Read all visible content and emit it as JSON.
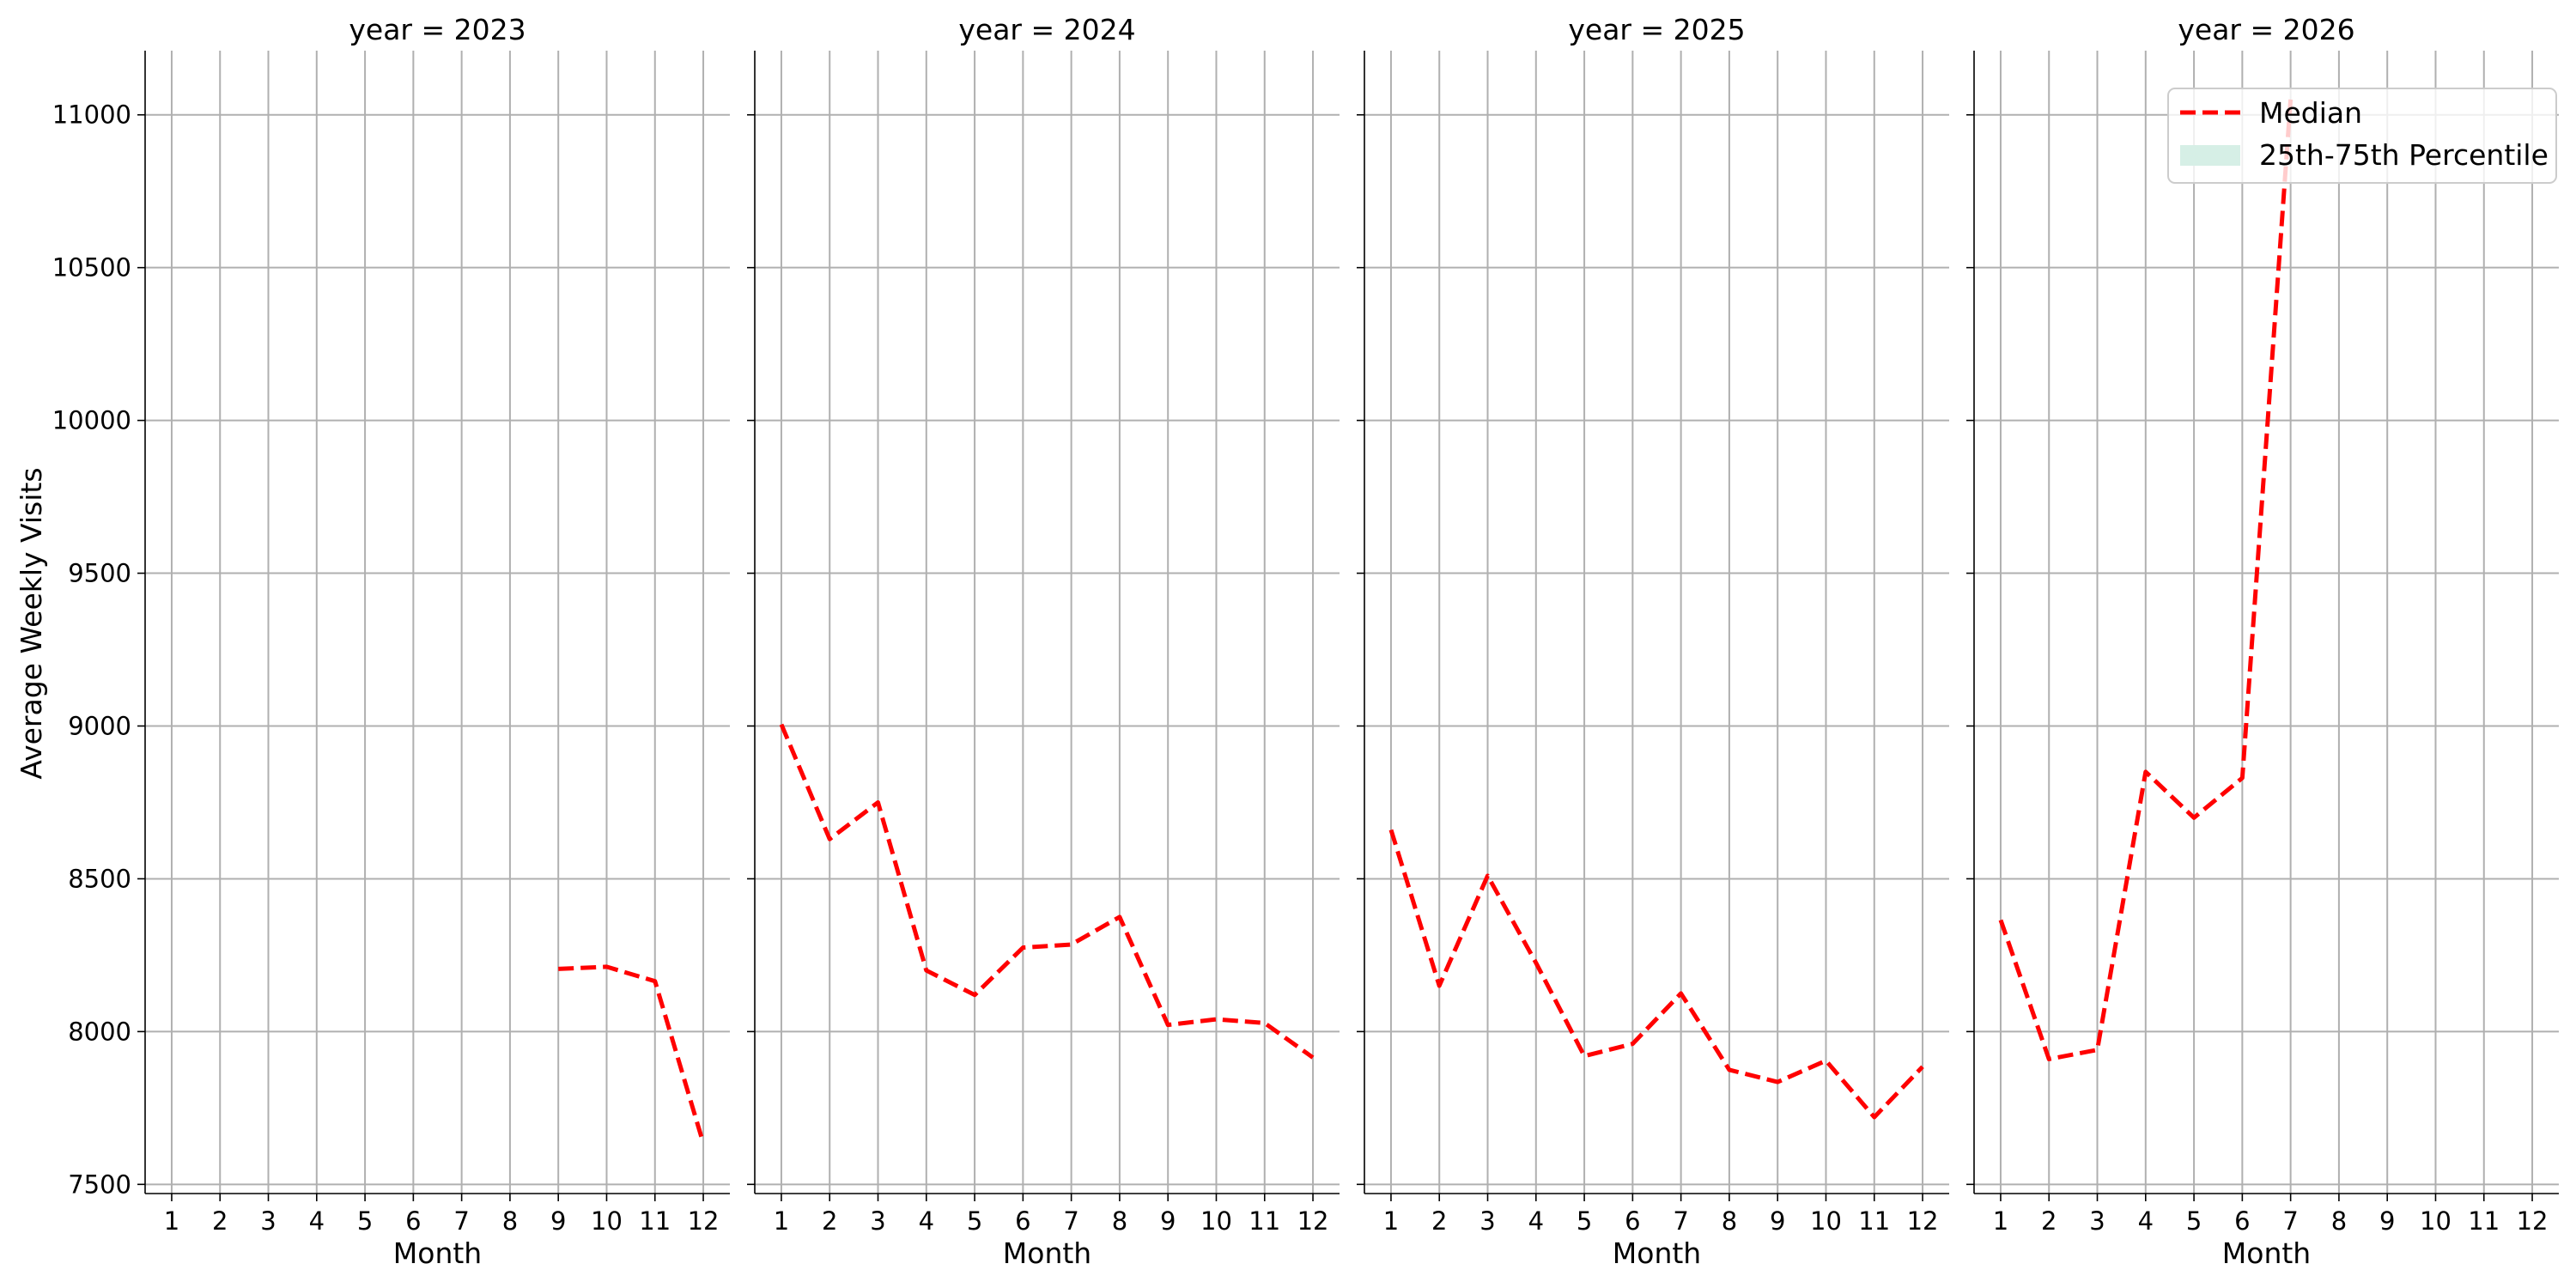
{
  "chart_data": {
    "type": "line",
    "ylabel": "Average Weekly Visits",
    "xlabel": "Month",
    "ylim": [
      7470,
      11210
    ],
    "yticks": [
      7500,
      8000,
      8500,
      9000,
      9500,
      10000,
      10500,
      11000
    ],
    "xlim": [
      0.45,
      12.55
    ],
    "xticks": [
      1,
      2,
      3,
      4,
      5,
      6,
      7,
      8,
      9,
      10,
      11,
      12
    ],
    "grid": true,
    "legend": {
      "placement": "top-right",
      "panel": 3,
      "entries": [
        "Median",
        "25th-75th Percentile"
      ],
      "colors": [
        "#ff0000",
        "#d6efe6"
      ]
    },
    "panels": [
      {
        "title": "year = 2023",
        "series": [
          {
            "name": "Median",
            "x": [
              9,
              10,
              11,
              12
            ],
            "y": [
              8205,
              8212,
              8165,
              7635
            ]
          }
        ]
      },
      {
        "title": "year = 2024",
        "series": [
          {
            "name": "Median",
            "x": [
              1,
              2,
              3,
              4,
              5,
              6,
              7,
              8,
              9,
              10,
              11,
              12
            ],
            "y": [
              9005,
              8630,
              8750,
              8200,
              8120,
              8275,
              8285,
              8375,
              8022,
              8040,
              8028,
              7915
            ]
          }
        ]
      },
      {
        "title": "year = 2025",
        "series": [
          {
            "name": "Median",
            "x": [
              1,
              2,
              3,
              4,
              5,
              6,
              7,
              8,
              9,
              10,
              11,
              12
            ],
            "y": [
              8660,
              8150,
              8510,
              8225,
              7920,
              7960,
              8125,
              7875,
              7835,
              7905,
              7720,
              7885
            ]
          }
        ]
      },
      {
        "title": "year = 2026",
        "series": [
          {
            "name": "Median",
            "x": [
              1,
              2,
              3,
              4,
              5,
              6,
              7
            ],
            "y": [
              8365,
              7910,
              7940,
              8850,
              8700,
              8830,
              11050
            ]
          }
        ]
      }
    ]
  }
}
